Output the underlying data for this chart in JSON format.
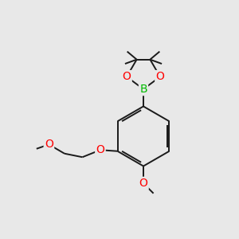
{
  "background_color": "#e8e8e8",
  "bond_color": "#1a1a1a",
  "atom_colors": {
    "O": "#ff0000",
    "B": "#00bb00"
  },
  "line_width": 1.4,
  "figsize": [
    3.0,
    3.0
  ],
  "dpi": 100,
  "xlim": [
    0,
    10
  ],
  "ylim": [
    0,
    10
  ]
}
